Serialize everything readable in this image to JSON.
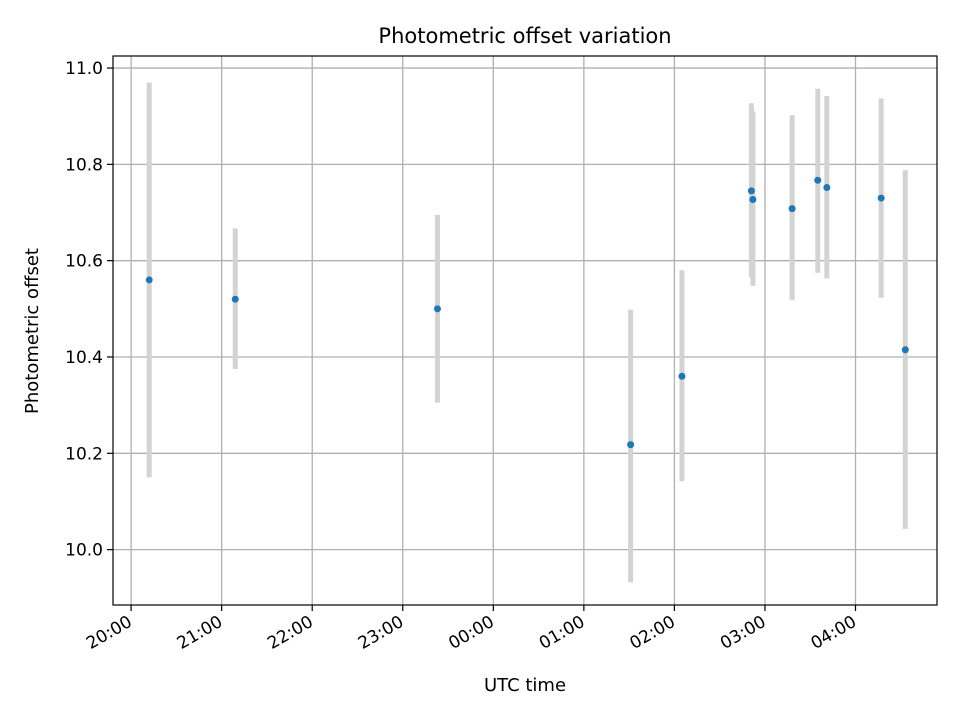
{
  "chart_data": {
    "type": "scatter",
    "title": "Photometric offset variation",
    "xlabel": "UTC time",
    "ylabel": "Photometric offset",
    "xlim_hours": [
      19.8,
      28.9
    ],
    "ylim": [
      9.885,
      11.025
    ],
    "grid": true,
    "legend": "none",
    "x_ticks": [
      {
        "h": 20,
        "label": "20:00"
      },
      {
        "h": 21,
        "label": "21:00"
      },
      {
        "h": 22,
        "label": "22:00"
      },
      {
        "h": 23,
        "label": "23:00"
      },
      {
        "h": 24,
        "label": "00:00"
      },
      {
        "h": 25,
        "label": "01:00"
      },
      {
        "h": 26,
        "label": "02:00"
      },
      {
        "h": 27,
        "label": "03:00"
      },
      {
        "h": 28,
        "label": "04:00"
      }
    ],
    "y_ticks": [
      {
        "v": 10.0,
        "label": "10.0"
      },
      {
        "v": 10.2,
        "label": "10.2"
      },
      {
        "v": 10.4,
        "label": "10.4"
      },
      {
        "v": 10.6,
        "label": "10.6"
      },
      {
        "v": 10.8,
        "label": "10.8"
      },
      {
        "v": 11.0,
        "label": "11.0"
      }
    ],
    "points": [
      {
        "time": "20:12",
        "y": 10.56,
        "y_low": 10.15,
        "y_high": 10.97
      },
      {
        "time": "21:09",
        "y": 10.52,
        "y_low": 10.375,
        "y_high": 10.667
      },
      {
        "time": "23:23",
        "y": 10.5,
        "y_low": 10.305,
        "y_high": 10.695
      },
      {
        "time": "01:31",
        "y": 10.218,
        "y_low": 9.932,
        "y_high": 10.498
      },
      {
        "time": "02:05",
        "y": 10.36,
        "y_low": 10.142,
        "y_high": 10.58
      },
      {
        "time": "02:51",
        "y": 10.745,
        "y_low": 10.565,
        "y_high": 10.927
      },
      {
        "time": "02:52",
        "y": 10.727,
        "y_low": 10.548,
        "y_high": 10.91
      },
      {
        "time": "03:18",
        "y": 10.708,
        "y_low": 10.518,
        "y_high": 10.902
      },
      {
        "time": "03:35",
        "y": 10.767,
        "y_low": 10.575,
        "y_high": 10.957
      },
      {
        "time": "03:41",
        "y": 10.752,
        "y_low": 10.563,
        "y_high": 10.942
      },
      {
        "time": "04:17",
        "y": 10.73,
        "y_low": 10.523,
        "y_high": 10.937
      },
      {
        "time": "04:33",
        "y": 10.415,
        "y_low": 10.043,
        "y_high": 10.788
      }
    ],
    "colors": {
      "point": "#1f77b4",
      "errorbar": "#d3d3d3",
      "grid": "#b0b0b0",
      "axes": "#000000"
    }
  }
}
